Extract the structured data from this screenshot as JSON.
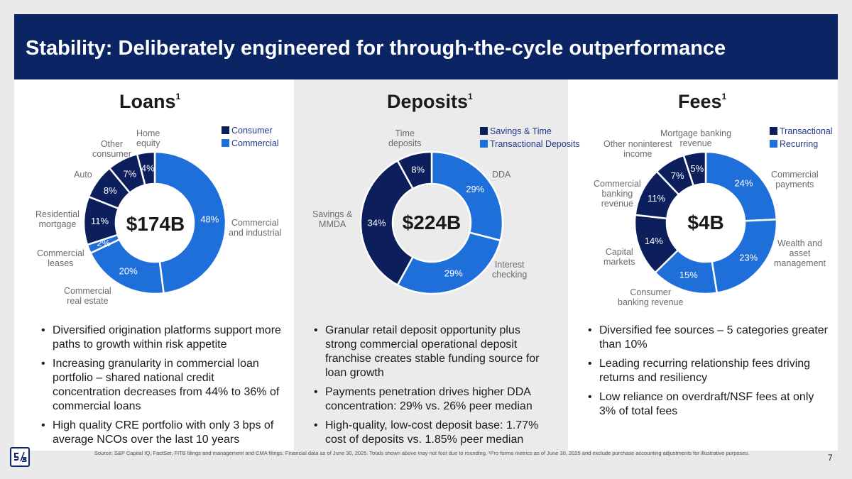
{
  "title": "Stability: Deliberately engineered for through-the-cycle outperformance",
  "colors": {
    "navy": "#0b2463",
    "blue": "#1f6fdb",
    "dark_segment": "#0c1f5c"
  },
  "loans": {
    "heading": "Loans",
    "sup": "1",
    "total": "$174B",
    "legend": [
      {
        "label": "Consumer",
        "color": "#0c1f5c"
      },
      {
        "label": "Commercial",
        "color": "#1f6fdb"
      }
    ],
    "segments": [
      {
        "name": "Commercial and industrial",
        "label": "Commercial\nand industrial",
        "pct": 48,
        "pct_label": "48%",
        "group": "Commercial"
      },
      {
        "name": "Commercial real estate",
        "label": "Commercial\nreal estate",
        "pct": 20,
        "pct_label": "20%",
        "group": "Commercial"
      },
      {
        "name": "Commercial leases",
        "label": "Commercial\nleases",
        "pct": 2,
        "pct_label": "2%",
        "group": "Commercial"
      },
      {
        "name": "Residential mortgage",
        "label": "Residential\nmortgage",
        "pct": 11,
        "pct_label": "11%",
        "group": "Consumer"
      },
      {
        "name": "Auto",
        "label": "Auto",
        "pct": 8,
        "pct_label": "8%",
        "group": "Consumer"
      },
      {
        "name": "Other consumer",
        "label": "Other\nconsumer",
        "pct": 7,
        "pct_label": "7%",
        "group": "Consumer"
      },
      {
        "name": "Home equity",
        "label": "Home\nequity",
        "pct": 4,
        "pct_label": "4%",
        "group": "Consumer"
      }
    ],
    "bullets": [
      "Diversified origination platforms support more paths to growth within risk appetite",
      "Increasing granularity in commercial loan portfolio – shared national credit concentration decreases from 44% to 36% of commercial loans",
      "High quality CRE portfolio with only 3 bps of average NCOs over the last 10 years"
    ]
  },
  "deposits": {
    "heading": "Deposits",
    "sup": "1",
    "total": "$224B",
    "legend": [
      {
        "label": "Savings & Time",
        "color": "#0c1f5c"
      },
      {
        "label": "Transactional Deposits",
        "color": "#1f6fdb"
      }
    ],
    "segments": [
      {
        "name": "DDA",
        "label": "DDA",
        "pct": 29,
        "pct_label": "29%",
        "group": "Transactional Deposits"
      },
      {
        "name": "Interest checking",
        "label": "Interest\nchecking",
        "pct": 29,
        "pct_label": "29%",
        "group": "Transactional Deposits"
      },
      {
        "name": "Savings & MMDA",
        "label": "Savings &\nMMDA",
        "pct": 34,
        "pct_label": "34%",
        "group": "Savings & Time"
      },
      {
        "name": "Time deposits",
        "label": "Time\ndeposits",
        "pct": 8,
        "pct_label": "8%",
        "group": "Savings & Time"
      }
    ],
    "bullets": [
      "Granular retail deposit opportunity plus strong commercial operational deposit franchise creates stable funding source for loan growth",
      "Payments penetration drives higher DDA concentration: 29% vs. 26% peer median",
      "High-quality, low-cost deposit base: 1.77% cost of deposits vs. 1.85% peer median"
    ]
  },
  "fees": {
    "heading": "Fees",
    "sup": "1",
    "total": "$4B",
    "legend": [
      {
        "label": "Transactional",
        "color": "#0c1f5c"
      },
      {
        "label": "Recurring",
        "color": "#1f6fdb"
      }
    ],
    "segments": [
      {
        "name": "Commercial payments",
        "label": "Commercial\npayments",
        "pct": 24,
        "pct_label": "24%",
        "group": "Recurring"
      },
      {
        "name": "Wealth and asset management",
        "label": "Wealth and\nasset\nmanagement",
        "pct": 23,
        "pct_label": "23%",
        "group": "Recurring"
      },
      {
        "name": "Consumer banking revenue",
        "label": "Consumer\nbanking revenue",
        "pct": 15,
        "pct_label": "15%",
        "group": "Recurring"
      },
      {
        "name": "Capital markets",
        "label": "Capital\nmarkets",
        "pct": 14,
        "pct_label": "14%",
        "group": "Transactional"
      },
      {
        "name": "Commercial banking revenue",
        "label": "Commercial\nbanking\nrevenue",
        "pct": 11,
        "pct_label": "11%",
        "group": "Transactional"
      },
      {
        "name": "Other noninterest income",
        "label": "Other noninterest\nincome",
        "pct": 7,
        "pct_label": "7%",
        "group": "Transactional"
      },
      {
        "name": "Mortgage banking revenue",
        "label": "Mortgage banking\nrevenue",
        "pct": 5,
        "pct_label": "5%",
        "group": "Transactional"
      }
    ],
    "bullets": [
      "Diversified fee sources – 5 categories greater than 10%",
      "Leading recurring relationship fees driving returns and resiliency",
      "Low reliance on overdraft/NSF fees at only 3% of total fees"
    ]
  },
  "footnote": "Source: S&P Capital IQ, FactSet, FITB filings and management and CMA filings. Financial data as of June 30, 2025. Totals shown above may not foot due to rounding. ¹Pro forma metrics as of June 30, 2025 and exclude purchase accounting adjustments for illustrative purposes.",
  "page_number": "7"
}
